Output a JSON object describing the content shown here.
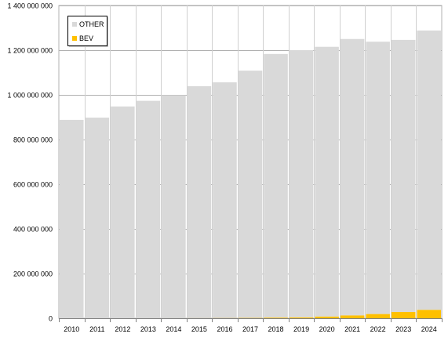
{
  "chart_data": {
    "type": "bar",
    "stacked": true,
    "categories": [
      "2010",
      "2011",
      "2012",
      "2013",
      "2014",
      "2015",
      "2016",
      "2017",
      "2018",
      "2019",
      "2020",
      "2021",
      "2022",
      "2023",
      "2024"
    ],
    "series": [
      {
        "name": "BEV",
        "color": "#ffc000",
        "values": [
          20000,
          50000,
          100000,
          200000,
          300000,
          600000,
          1000000,
          1500000,
          3000000,
          4000000,
          8000000,
          13000000,
          19000000,
          28000000,
          38000000
        ]
      },
      {
        "name": "OTHER",
        "color": "#d9d9d9",
        "values": [
          888000000,
          898000000,
          948000000,
          973000000,
          998000000,
          1038000000,
          1055000000,
          1107000000,
          1180000000,
          1196000000,
          1207000000,
          1237000000,
          1219000000,
          1218000000,
          1250000000
        ]
      }
    ],
    "yticks": [
      "0",
      "200 000 000",
      "400 000 000",
      "600 000 000",
      "800 000 000",
      "1 000 000 000",
      "1 200 000 000",
      "1 400 000 000"
    ],
    "ylim": [
      0,
      1400000000
    ],
    "grid": true,
    "legend_position": "top-left",
    "legend": [
      {
        "label": "OTHER",
        "color": "#d9d9d9"
      },
      {
        "label": "BEV",
        "color": "#ffc000"
      }
    ]
  }
}
